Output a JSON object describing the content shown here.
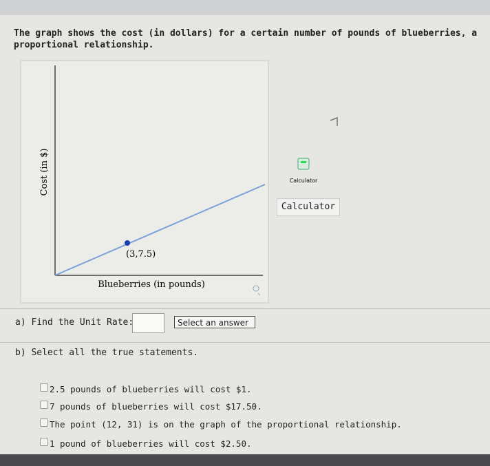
{
  "question": "The graph shows the cost (in dollars) for a certain number of pounds of blueberries, a proportional relationship.",
  "graph": {
    "y_label": "Cost (in $)",
    "x_label": "Blueberries (in pounds)",
    "point_label": "(3,7.5)"
  },
  "calculator": {
    "icon_label": "Calculator",
    "button": "Calculator"
  },
  "part_a": {
    "prompt": "a) Find the Unit Rate:",
    "select": "Select an answer"
  },
  "part_b": {
    "prompt": "b) Select all the true statements.",
    "options": [
      "2.5 pounds of blueberries will cost $1.",
      "7 pounds of blueberries will cost $17.50.",
      "The point (12, 31) is on the graph of the proportional relationship.",
      "1 pound of blueberries will cost $2.50."
    ]
  }
}
